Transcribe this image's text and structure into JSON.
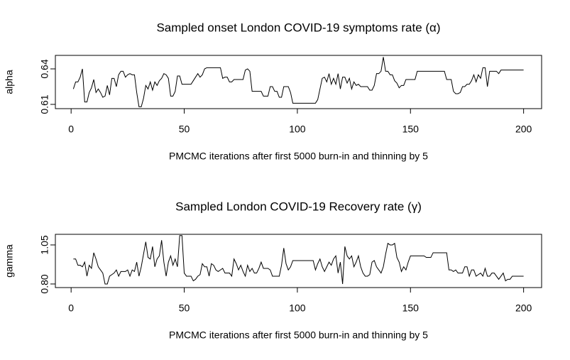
{
  "chart_data": [
    {
      "type": "line",
      "title": "Sampled onset London COVID-19 symptoms rate (α)",
      "x_label": "PMCMC iterations after first 5000 burn-in and thinning by 5",
      "y_label": "alpha",
      "x": [
        1,
        2,
        3,
        4,
        5,
        6,
        7,
        8,
        9,
        10,
        11,
        12,
        13,
        14,
        15,
        16,
        17,
        18,
        19,
        20,
        21,
        22,
        23,
        24,
        25,
        26,
        27,
        28,
        29,
        30,
        31,
        32,
        33,
        34,
        35,
        36,
        37,
        38,
        39,
        40,
        41,
        42,
        43,
        44,
        45,
        46,
        47,
        48,
        49,
        50,
        51,
        52,
        53,
        54,
        55,
        56,
        57,
        58,
        59,
        60,
        61,
        62,
        63,
        64,
        65,
        66,
        67,
        68,
        69,
        70,
        71,
        72,
        73,
        74,
        75,
        76,
        77,
        78,
        79,
        80,
        81,
        82,
        83,
        84,
        85,
        86,
        87,
        88,
        89,
        90,
        91,
        92,
        93,
        94,
        95,
        96,
        97,
        98,
        99,
        100,
        101,
        102,
        103,
        104,
        105,
        106,
        107,
        108,
        109,
        110,
        111,
        112,
        113,
        114,
        115,
        116,
        117,
        118,
        119,
        120,
        121,
        122,
        123,
        124,
        125,
        126,
        127,
        128,
        129,
        130,
        131,
        132,
        133,
        134,
        135,
        136,
        137,
        138,
        139,
        140,
        141,
        142,
        143,
        144,
        145,
        146,
        147,
        148,
        149,
        150,
        151,
        152,
        153,
        154,
        155,
        156,
        157,
        158,
        159,
        160,
        161,
        162,
        163,
        164,
        165,
        166,
        167,
        168,
        169,
        170,
        171,
        172,
        173,
        174,
        175,
        176,
        177,
        178,
        179,
        180,
        181,
        182,
        183,
        184,
        185,
        186,
        187,
        188,
        189,
        190,
        191,
        192,
        193,
        194,
        195,
        196,
        197,
        198,
        199,
        200
      ],
      "values": [
        0.623,
        0.629,
        0.629,
        0.633,
        0.64,
        0.612,
        0.612,
        0.62,
        0.624,
        0.631,
        0.62,
        0.623,
        0.62,
        0.616,
        0.617,
        0.626,
        0.618,
        0.632,
        0.632,
        0.625,
        0.635,
        0.638,
        0.638,
        0.633,
        0.635,
        0.636,
        0.635,
        0.635,
        0.62,
        0.608,
        0.608,
        0.615,
        0.626,
        0.623,
        0.629,
        0.622,
        0.629,
        0.626,
        0.63,
        0.632,
        0.636,
        0.635,
        0.632,
        0.617,
        0.617,
        0.621,
        0.634,
        0.634,
        0.627,
        0.627,
        0.627,
        0.627,
        0.627,
        0.63,
        0.633,
        0.636,
        0.633,
        0.635,
        0.64,
        0.641,
        0.641,
        0.641,
        0.641,
        0.641,
        0.641,
        0.641,
        0.632,
        0.633,
        0.633,
        0.629,
        0.629,
        0.631,
        0.631,
        0.631,
        0.631,
        0.631,
        0.639,
        0.64,
        0.638,
        0.621,
        0.621,
        0.621,
        0.621,
        0.621,
        0.617,
        0.617,
        0.617,
        0.625,
        0.625,
        0.621,
        0.621,
        0.616,
        0.616,
        0.625,
        0.625,
        0.625,
        0.62,
        0.611,
        0.611,
        0.611,
        0.611,
        0.611,
        0.611,
        0.611,
        0.611,
        0.611,
        0.611,
        0.611,
        0.614,
        0.623,
        0.632,
        0.633,
        0.629,
        0.636,
        0.627,
        0.632,
        0.627,
        0.636,
        0.623,
        0.633,
        0.633,
        0.628,
        0.632,
        0.623,
        0.629,
        0.626,
        0.627,
        0.625,
        0.625,
        0.625,
        0.625,
        0.622,
        0.622,
        0.626,
        0.636,
        0.636,
        0.638,
        0.65,
        0.638,
        0.638,
        0.635,
        0.635,
        0.63,
        0.628,
        0.624,
        0.626,
        0.626,
        0.631,
        0.631,
        0.631,
        0.631,
        0.631,
        0.638,
        0.638,
        0.638,
        0.638,
        0.638,
        0.638,
        0.638,
        0.638,
        0.638,
        0.638,
        0.638,
        0.638,
        0.638,
        0.631,
        0.631,
        0.631,
        0.621,
        0.619,
        0.619,
        0.62,
        0.625,
        0.625,
        0.627,
        0.627,
        0.63,
        0.635,
        0.629,
        0.635,
        0.632,
        0.641,
        0.641,
        0.625,
        0.638,
        0.638,
        0.638,
        0.638,
        0.636,
        0.639,
        0.639,
        0.639,
        0.639,
        0.639,
        0.639,
        0.639,
        0.639,
        0.639,
        0.639,
        0.639
      ],
      "color": "#000000",
      "xlim": [
        -6.96,
        207.96
      ],
      "xticks": [
        0,
        50,
        100,
        150,
        200
      ],
      "ylim": [
        0.6064,
        0.6514
      ],
      "yticks": [
        0.61,
        0.64
      ]
    },
    {
      "type": "line",
      "title": "Sampled London COVID-19 Recovery rate (γ)",
      "x_label": "PMCMC iterations after first 5000 burn-in and thinning by 5",
      "y_label": "gamma",
      "x": [
        1,
        2,
        3,
        4,
        5,
        6,
        7,
        8,
        9,
        10,
        11,
        12,
        13,
        14,
        15,
        16,
        17,
        18,
        19,
        20,
        21,
        22,
        23,
        24,
        25,
        26,
        27,
        28,
        29,
        30,
        31,
        32,
        33,
        34,
        35,
        36,
        37,
        38,
        39,
        40,
        41,
        42,
        43,
        44,
        45,
        46,
        47,
        48,
        49,
        50,
        51,
        52,
        53,
        54,
        55,
        56,
        57,
        58,
        59,
        60,
        61,
        62,
        63,
        64,
        65,
        66,
        67,
        68,
        69,
        70,
        71,
        72,
        73,
        74,
        75,
        76,
        77,
        78,
        79,
        80,
        81,
        82,
        83,
        84,
        85,
        86,
        87,
        88,
        89,
        90,
        91,
        92,
        93,
        94,
        95,
        96,
        97,
        98,
        99,
        100,
        101,
        102,
        103,
        104,
        105,
        106,
        107,
        108,
        109,
        110,
        111,
        112,
        113,
        114,
        115,
        116,
        117,
        118,
        119,
        120,
        121,
        122,
        123,
        124,
        125,
        126,
        127,
        128,
        129,
        130,
        131,
        132,
        133,
        134,
        135,
        136,
        137,
        138,
        139,
        140,
        141,
        142,
        143,
        144,
        145,
        146,
        147,
        148,
        149,
        150,
        151,
        152,
        153,
        154,
        155,
        156,
        157,
        158,
        159,
        160,
        161,
        162,
        163,
        164,
        165,
        166,
        167,
        168,
        169,
        170,
        171,
        172,
        173,
        174,
        175,
        176,
        177,
        178,
        179,
        180,
        181,
        182,
        183,
        184,
        185,
        186,
        187,
        188,
        189,
        190,
        191,
        192,
        193,
        194,
        195,
        196,
        197,
        198,
        199,
        200
      ],
      "values": [
        0.96,
        0.96,
        0.92,
        0.92,
        0.91,
        0.94,
        0.85,
        0.92,
        0.9,
        1.0,
        0.96,
        0.91,
        0.89,
        0.87,
        0.8,
        0.8,
        0.85,
        0.86,
        0.87,
        0.89,
        0.85,
        0.88,
        0.88,
        0.88,
        0.89,
        0.85,
        0.89,
        0.88,
        0.94,
        0.85,
        0.91,
        0.99,
        1.07,
        0.97,
        0.96,
        1.04,
        0.91,
        0.96,
        0.98,
        1.08,
        0.94,
        0.85,
        0.94,
        0.98,
        0.92,
        0.96,
        0.91,
        1.11,
        1.11,
        0.87,
        0.85,
        0.85,
        0.85,
        0.82,
        0.83,
        0.85,
        0.86,
        0.93,
        0.91,
        0.91,
        0.85,
        0.93,
        0.92,
        0.89,
        0.88,
        0.89,
        0.9,
        0.87,
        0.87,
        0.87,
        0.85,
        0.96,
        0.93,
        0.89,
        0.92,
        0.88,
        0.85,
        0.92,
        0.88,
        0.9,
        0.87,
        0.87,
        0.9,
        0.94,
        0.9,
        0.9,
        0.9,
        0.89,
        0.85,
        0.85,
        0.85,
        0.85,
        0.92,
        1.03,
        0.93,
        0.89,
        0.91,
        0.95,
        0.95,
        0.95,
        0.95,
        0.95,
        0.95,
        0.95,
        0.95,
        0.95,
        0.95,
        0.89,
        0.93,
        0.96,
        0.91,
        0.88,
        0.91,
        0.94,
        0.92,
        0.96,
        0.98,
        0.87,
        0.94,
        0.8,
        1.04,
        0.98,
        0.96,
        0.98,
        0.91,
        0.94,
        0.98,
        0.91,
        0.87,
        0.85,
        0.85,
        0.86,
        0.94,
        0.95,
        0.91,
        0.89,
        0.87,
        0.91,
        0.99,
        1.06,
        1.05,
        1.05,
        1.06,
        0.97,
        0.94,
        0.88,
        0.91,
        0.89,
        0.94,
        0.98,
        0.98,
        0.98,
        0.98,
        0.98,
        0.98,
        0.98,
        0.97,
        0.97,
        0.97,
        1.0,
        1.0,
        1.0,
        1.0,
        1.0,
        1.0,
        1.0,
        0.89,
        0.89,
        0.88,
        0.89,
        0.87,
        0.87,
        0.87,
        0.91,
        0.91,
        0.85,
        0.89,
        0.89,
        0.85,
        0.86,
        0.87,
        0.85,
        0.9,
        0.85,
        0.85,
        0.87,
        0.87,
        0.85,
        0.83,
        0.85,
        0.87,
        0.82,
        0.83,
        0.83,
        0.85,
        0.85,
        0.85,
        0.85,
        0.85,
        0.85
      ],
      "color": "#000000",
      "xlim": [
        -6.96,
        207.96
      ],
      "xticks": [
        0,
        50,
        100,
        150,
        200
      ],
      "ylim": [
        0.777,
        1.118
      ],
      "yticks": [
        {
          "value": 0.8,
          "label": "0.80"
        },
        1.05
      ]
    }
  ]
}
